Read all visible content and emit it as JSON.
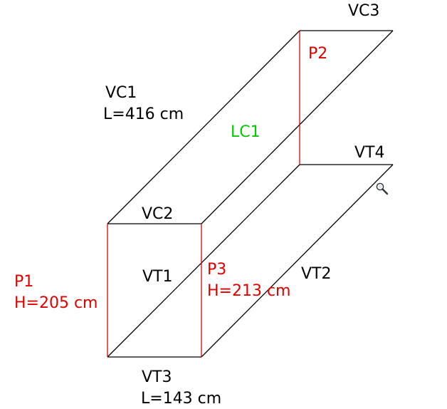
{
  "labels": {
    "vc3": "VC3",
    "p2": "P2",
    "vc1": "VC1",
    "vc1_length": "L=416 cm",
    "lc1": "LC1",
    "vt4": "VT4",
    "vc2": "VC2",
    "p1": "P1",
    "p1_height": "H=205 cm",
    "vt1": "VT1",
    "p3": "P3",
    "p3_height": "H=213 cm",
    "vt2": "VT2",
    "vt3": "VT3",
    "vt3_length": "L=143 cm"
  },
  "colors": {
    "edge": "#000000",
    "post": "#e00000",
    "highlight": "#00cc00"
  },
  "icons": {
    "zoom": "magnifier-icon"
  }
}
